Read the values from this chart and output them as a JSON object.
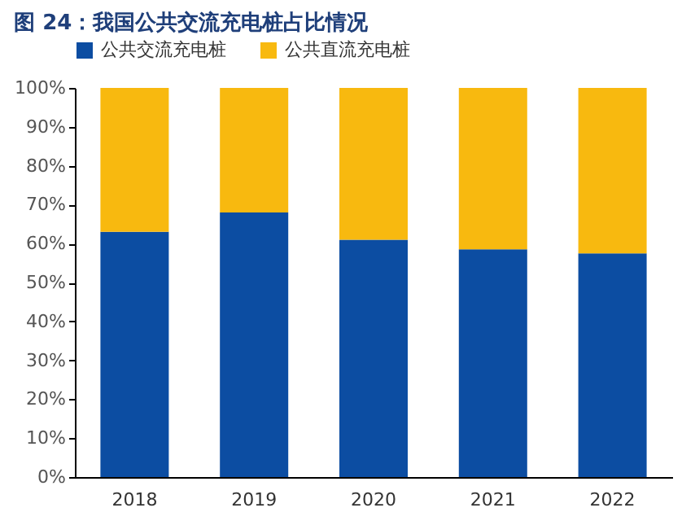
{
  "chart_data": {
    "type": "bar",
    "stacked": true,
    "title": "图 24：我国公共交流充电桩占比情况",
    "categories": [
      "2018",
      "2019",
      "2020",
      "2021",
      "2022"
    ],
    "series": [
      {
        "name": "公共交流充电桩",
        "color": "#0c4da2",
        "values": [
          63,
          68,
          61,
          58.5,
          57.5
        ]
      },
      {
        "name": "公共直流充电桩",
        "color": "#f8b90f",
        "values": [
          37,
          32,
          39,
          41.5,
          42.5
        ]
      }
    ],
    "ylim": [
      0,
      100
    ],
    "yticks": [
      {
        "value": 0,
        "label": "0%"
      },
      {
        "value": 10,
        "label": "10%"
      },
      {
        "value": 20,
        "label": "20%"
      },
      {
        "value": 30,
        "label": "30%"
      },
      {
        "value": 40,
        "label": "40%"
      },
      {
        "value": 50,
        "label": "50%"
      },
      {
        "value": 60,
        "label": "60%"
      },
      {
        "value": 70,
        "label": "70%"
      },
      {
        "value": 80,
        "label": "80%"
      },
      {
        "value": 90,
        "label": "90%"
      },
      {
        "value": 100,
        "label": "100%"
      }
    ],
    "grid": false,
    "legend": "top"
  }
}
